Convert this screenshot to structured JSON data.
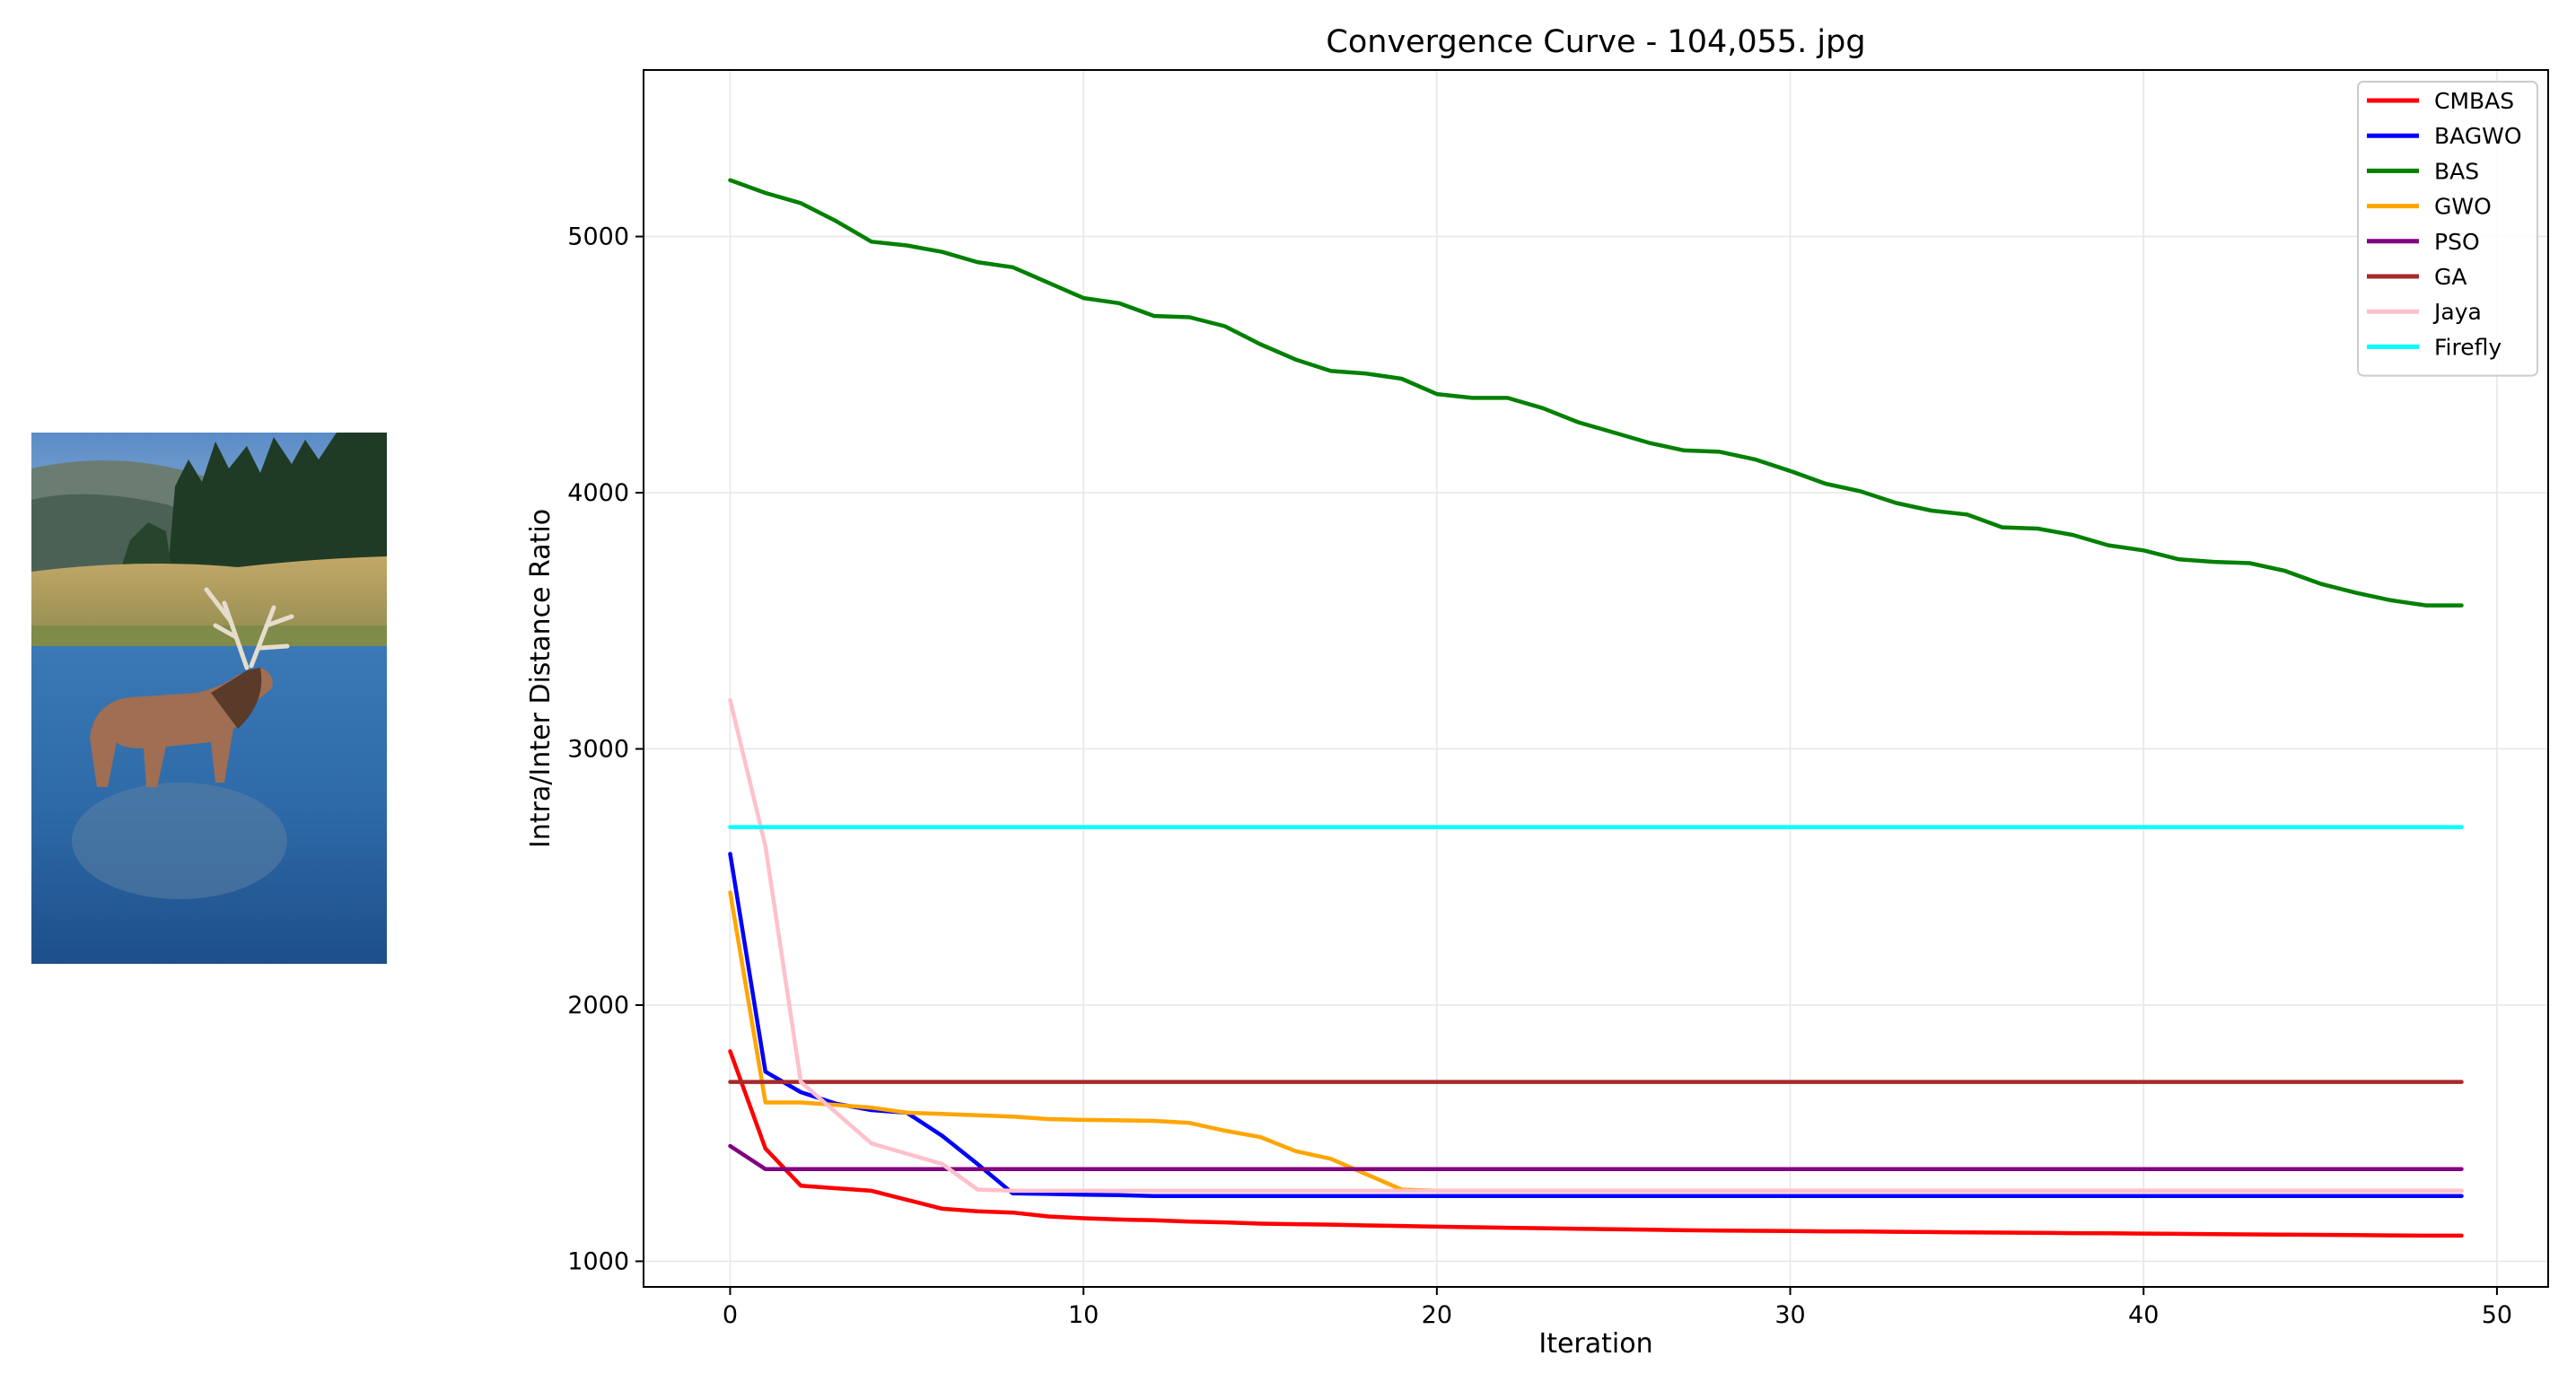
{
  "photo": {
    "subject": "elk standing in a river",
    "colors": {
      "sky": "#5f8fc8",
      "trees": "#1f3b26",
      "grass": "#b49a5c",
      "water": "#2f66a8",
      "elk": "#a06e52"
    }
  },
  "chart_data": {
    "type": "line",
    "title": "Convergence Curve - 104,055. jpg",
    "xlabel": "Iteration",
    "ylabel": "Intra/Inter Distance Ratio",
    "xlim": [
      -2.45,
      51.45
    ],
    "ylim": [
      900,
      5650
    ],
    "xticks": [
      0,
      10,
      20,
      30,
      40,
      50
    ],
    "yticks": [
      1000,
      2000,
      3000,
      4000,
      5000
    ],
    "grid": true,
    "legend_position": "top-right",
    "x": [
      0,
      1,
      2,
      3,
      4,
      5,
      6,
      7,
      8,
      9,
      10,
      11,
      12,
      13,
      14,
      15,
      16,
      17,
      18,
      19,
      20,
      21,
      22,
      23,
      24,
      25,
      26,
      27,
      28,
      29,
      30,
      31,
      32,
      33,
      34,
      35,
      36,
      37,
      38,
      39,
      40,
      41,
      42,
      43,
      44,
      45,
      46,
      47,
      48,
      49
    ],
    "series": [
      {
        "name": "CMBAS",
        "color": "#ff0000",
        "values": [
          1820,
          1440,
          1295,
          1285,
          1275,
          1240,
          1205,
          1195,
          1190,
          1175,
          1168,
          1163,
          1160,
          1155,
          1152,
          1147,
          1145,
          1143,
          1140,
          1138,
          1135,
          1133,
          1131,
          1129,
          1127,
          1125,
          1123,
          1121,
          1120,
          1119,
          1118,
          1117,
          1116,
          1115,
          1114,
          1113,
          1112,
          1111,
          1110,
          1109,
          1108,
          1107,
          1106,
          1105,
          1104,
          1103,
          1102,
          1101,
          1100,
          1100
        ]
      },
      {
        "name": "BAGWO",
        "color": "#0000ff",
        "values": [
          2590,
          1740,
          1660,
          1615,
          1590,
          1580,
          1490,
          1380,
          1265,
          1263,
          1260,
          1258,
          1255,
          1255,
          1255,
          1255,
          1255,
          1255,
          1255,
          1255,
          1255,
          1255,
          1255,
          1255,
          1255,
          1255,
          1255,
          1255,
          1255,
          1255,
          1255,
          1255,
          1255,
          1255,
          1255,
          1255,
          1255,
          1255,
          1255,
          1255,
          1255,
          1255,
          1255,
          1255,
          1255,
          1255,
          1255,
          1255,
          1255,
          1255
        ]
      },
      {
        "name": "BAS",
        "color": "#008000",
        "values": [
          5220,
          5170,
          5130,
          5060,
          4980,
          4965,
          4940,
          4900,
          4880,
          4820,
          4760,
          4740,
          4690,
          4685,
          4650,
          4580,
          4520,
          4475,
          4465,
          4445,
          4385,
          4370,
          4370,
          4330,
          4275,
          4235,
          4195,
          4165,
          4160,
          4130,
          4085,
          4035,
          4005,
          3960,
          3930,
          3915,
          3865,
          3860,
          3835,
          3795,
          3775,
          3740,
          3730,
          3725,
          3695,
          3645,
          3610,
          3580,
          3560,
          3560
        ]
      },
      {
        "name": "GWO",
        "color": "#ffa500",
        "values": [
          2440,
          1620,
          1620,
          1610,
          1600,
          1580,
          1575,
          1570,
          1565,
          1555,
          1552,
          1550,
          1548,
          1540,
          1510,
          1485,
          1430,
          1400,
          1340,
          1280,
          1275,
          1275,
          1275,
          1275,
          1275,
          1275,
          1275,
          1275,
          1275,
          1275,
          1275,
          1275,
          1275,
          1275,
          1275,
          1275,
          1275,
          1275,
          1275,
          1275,
          1275,
          1275,
          1275,
          1275,
          1275,
          1275,
          1275,
          1275,
          1275,
          1275
        ]
      },
      {
        "name": "PSO",
        "color": "#800080",
        "values": [
          1450,
          1360,
          1360,
          1360,
          1360,
          1360,
          1360,
          1360,
          1360,
          1360,
          1360,
          1360,
          1360,
          1360,
          1360,
          1360,
          1360,
          1360,
          1360,
          1360,
          1360,
          1360,
          1360,
          1360,
          1360,
          1360,
          1360,
          1360,
          1360,
          1360,
          1360,
          1360,
          1360,
          1360,
          1360,
          1360,
          1360,
          1360,
          1360,
          1360,
          1360,
          1360,
          1360,
          1360,
          1360,
          1360,
          1360,
          1360,
          1360,
          1360
        ]
      },
      {
        "name": "GA",
        "color": "#a52a2a",
        "values": [
          1700,
          1700,
          1700,
          1700,
          1700,
          1700,
          1700,
          1700,
          1700,
          1700,
          1700,
          1700,
          1700,
          1700,
          1700,
          1700,
          1700,
          1700,
          1700,
          1700,
          1700,
          1700,
          1700,
          1700,
          1700,
          1700,
          1700,
          1700,
          1700,
          1700,
          1700,
          1700,
          1700,
          1700,
          1700,
          1700,
          1700,
          1700,
          1700,
          1700,
          1700,
          1700,
          1700,
          1700,
          1700,
          1700,
          1700,
          1700,
          1700,
          1700
        ]
      },
      {
        "name": "Jaya",
        "color": "#ffc0cb",
        "values": [
          3190,
          2620,
          1700,
          1580,
          1460,
          1420,
          1380,
          1280,
          1275,
          1275,
          1275,
          1275,
          1275,
          1275,
          1275,
          1275,
          1275,
          1275,
          1275,
          1275,
          1275,
          1275,
          1275,
          1275,
          1275,
          1275,
          1275,
          1275,
          1275,
          1275,
          1275,
          1275,
          1275,
          1275,
          1275,
          1275,
          1275,
          1275,
          1275,
          1275,
          1275,
          1275,
          1275,
          1275,
          1275,
          1275,
          1275,
          1275,
          1275,
          1275
        ]
      },
      {
        "name": "Firefly",
        "color": "#00ffff",
        "values": [
          2695,
          2695,
          2695,
          2695,
          2695,
          2695,
          2695,
          2695,
          2695,
          2695,
          2695,
          2695,
          2695,
          2695,
          2695,
          2695,
          2695,
          2695,
          2695,
          2695,
          2695,
          2695,
          2695,
          2695,
          2695,
          2695,
          2695,
          2695,
          2695,
          2695,
          2695,
          2695,
          2695,
          2695,
          2695,
          2695,
          2695,
          2695,
          2695,
          2695,
          2695,
          2695,
          2695,
          2695,
          2695,
          2695,
          2695,
          2695,
          2695,
          2695
        ]
      }
    ]
  }
}
